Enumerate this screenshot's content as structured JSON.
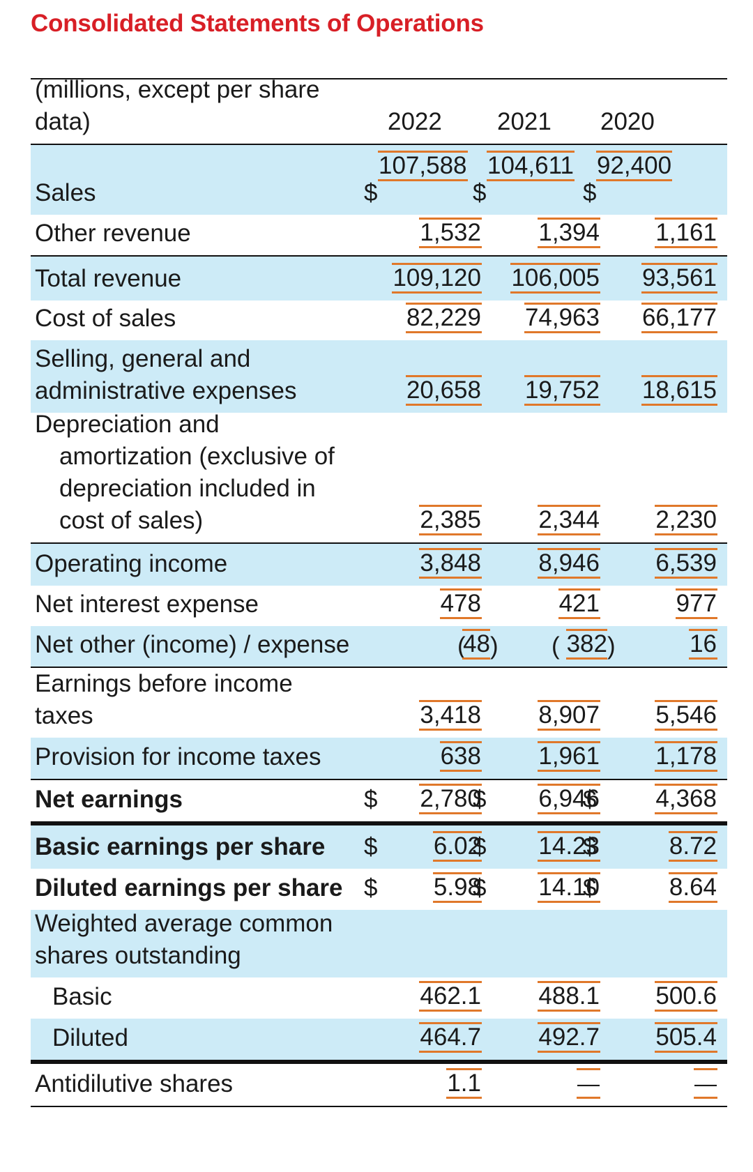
{
  "title": "Consolidated Statements of Operations",
  "header": {
    "units_label": "(millions, except per share data)",
    "units_line1": "(millions, except per share",
    "units_line2": "data)",
    "years": [
      "2022",
      "2021",
      "2020"
    ]
  },
  "rows": {
    "sales": {
      "label": "Sales",
      "values": [
        "107,588",
        "104,611",
        "92,400"
      ],
      "dollar": "$"
    },
    "other_revenue": {
      "label": "Other revenue",
      "values": [
        "1,532",
        "1,394",
        "1,161"
      ]
    },
    "total_revenue": {
      "label": "Total revenue",
      "values": [
        "109,120",
        "106,005",
        "93,561"
      ]
    },
    "cost_of_sales": {
      "label": "Cost of sales",
      "values": [
        "82,229",
        "74,963",
        "66,177"
      ]
    },
    "sga": {
      "label_line1": "Selling, general and",
      "label_line2": "administrative expenses",
      "values": [
        "20,658",
        "19,752",
        "18,615"
      ]
    },
    "depreciation": {
      "label_line1": "Depreciation and",
      "label_line2": "amortization (exclusive of",
      "label_line3": "depreciation included in",
      "label_line4": "cost of sales)",
      "values": [
        "2,385",
        "2,344",
        "2,230"
      ]
    },
    "operating_income": {
      "label": "Operating income",
      "values": [
        "3,848",
        "8,946",
        "6,539"
      ]
    },
    "net_interest": {
      "label": "Net interest expense",
      "values": [
        "478",
        "421",
        "977"
      ]
    },
    "net_other": {
      "label": "Net other (income) / expense",
      "values": [
        "48",
        "382",
        "16"
      ],
      "open": "(",
      "close": ")"
    },
    "ebit": {
      "label_line1": "Earnings before income",
      "label_line2": "taxes",
      "values": [
        "3,418",
        "8,907",
        "5,546"
      ]
    },
    "provision": {
      "label": "Provision for income taxes",
      "values": [
        "638",
        "1,961",
        "1,178"
      ]
    },
    "net_earnings": {
      "label": "Net earnings",
      "values": [
        "2,780",
        "6,946",
        "4,368"
      ],
      "dollar": "$"
    },
    "basic_eps": {
      "label": "Basic earnings per share",
      "values": [
        "6.02",
        "14.23",
        "8.72"
      ],
      "dollar": "$"
    },
    "diluted_eps": {
      "label": "Diluted earnings per share",
      "values": [
        "5.98",
        "14.10",
        "8.64"
      ],
      "dollar": "$"
    },
    "weighted_avg": {
      "label_line1": "Weighted average common",
      "label_line2": "shares outstanding"
    },
    "basic_shares": {
      "label": "Basic",
      "values": [
        "462.1",
        "488.1",
        "500.6"
      ]
    },
    "diluted_shares": {
      "label": "Diluted",
      "values": [
        "464.7",
        "492.7",
        "505.4"
      ]
    },
    "antidilutive": {
      "label": "Antidilutive shares",
      "values": [
        "1.1",
        "—",
        "—"
      ]
    }
  },
  "colors": {
    "title": "#d81f26",
    "shade": "#cdebf7",
    "value_rule": "#e0782a",
    "rule": "#111111"
  }
}
